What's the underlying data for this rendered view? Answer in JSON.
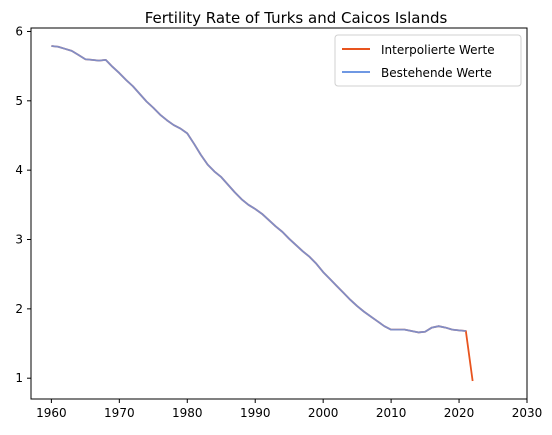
{
  "chart_data": {
    "type": "line",
    "title": "Fertility Rate of Turks and Caicos Islands",
    "xlabel": "",
    "ylabel": "",
    "xlim": [
      1957,
      2030
    ],
    "ylim": [
      0.7,
      6.05
    ],
    "x_ticks": [
      1960,
      1970,
      1980,
      1990,
      2000,
      2010,
      2020,
      2030
    ],
    "y_ticks": [
      1,
      2,
      3,
      4,
      5,
      6
    ],
    "grid": false,
    "legend_position": "top-right",
    "series": [
      {
        "name": "Interpolierte Werte",
        "color": "#e8541e",
        "x": [
          1960,
          1961,
          1962,
          1963,
          1964,
          1965,
          1966,
          1967,
          1968,
          1969,
          1970,
          1971,
          1972,
          1973,
          1974,
          1975,
          1976,
          1977,
          1978,
          1979,
          1980,
          1981,
          1982,
          1983,
          1984,
          1985,
          1986,
          1987,
          1988,
          1989,
          1990,
          1991,
          1992,
          1993,
          1994,
          1995,
          1996,
          1997,
          1998,
          1999,
          2000,
          2001,
          2002,
          2003,
          2004,
          2005,
          2006,
          2007,
          2008,
          2009,
          2010,
          2011,
          2012,
          2013,
          2014,
          2015,
          2016,
          2017,
          2018,
          2019,
          2020,
          2021,
          2022
        ],
        "y": [
          5.79,
          5.78,
          5.75,
          5.72,
          5.66,
          5.6,
          5.59,
          5.58,
          5.59,
          5.49,
          5.4,
          5.3,
          5.21,
          5.1,
          4.99,
          4.9,
          4.8,
          4.72,
          4.65,
          4.6,
          4.53,
          4.38,
          4.22,
          4.08,
          3.98,
          3.9,
          3.79,
          3.68,
          3.58,
          3.5,
          3.44,
          3.37,
          3.28,
          3.19,
          3.11,
          3.01,
          2.92,
          2.83,
          2.75,
          2.65,
          2.53,
          2.43,
          2.33,
          2.23,
          2.13,
          2.04,
          1.96,
          1.89,
          1.82,
          1.75,
          1.7,
          1.7,
          1.7,
          1.68,
          1.66,
          1.67,
          1.73,
          1.75,
          1.73,
          1.7,
          1.69,
          1.68,
          0.96
        ]
      },
      {
        "name": "Bestehende Werte",
        "color": "#6f98e3",
        "x": [
          1960,
          1961,
          1962,
          1963,
          1964,
          1965,
          1966,
          1967,
          1968,
          1969,
          1970,
          1971,
          1972,
          1973,
          1974,
          1975,
          1976,
          1977,
          1978,
          1979,
          1980,
          1981,
          1982,
          1983,
          1984,
          1985,
          1986,
          1987,
          1988,
          1989,
          1990,
          1991,
          1992,
          1993,
          1994,
          1995,
          1996,
          1997,
          1998,
          1999,
          2000,
          2001,
          2002,
          2003,
          2004,
          2005,
          2006,
          2007,
          2008,
          2009,
          2010,
          2011,
          2012,
          2013,
          2014,
          2015,
          2016,
          2017,
          2018,
          2019,
          2020,
          2021
        ],
        "y": [
          5.79,
          5.78,
          5.75,
          5.72,
          5.66,
          5.6,
          5.59,
          5.58,
          5.59,
          5.49,
          5.4,
          5.3,
          5.21,
          5.1,
          4.99,
          4.9,
          4.8,
          4.72,
          4.65,
          4.6,
          4.53,
          4.38,
          4.22,
          4.08,
          3.98,
          3.9,
          3.79,
          3.68,
          3.58,
          3.5,
          3.44,
          3.37,
          3.28,
          3.19,
          3.11,
          3.01,
          2.92,
          2.83,
          2.75,
          2.65,
          2.53,
          2.43,
          2.33,
          2.23,
          2.13,
          2.04,
          1.96,
          1.89,
          1.82,
          1.75,
          1.7,
          1.7,
          1.7,
          1.68,
          1.66,
          1.67,
          1.73,
          1.75,
          1.73,
          1.7,
          1.69,
          1.68
        ],
        "opacity": 0.85
      }
    ]
  }
}
